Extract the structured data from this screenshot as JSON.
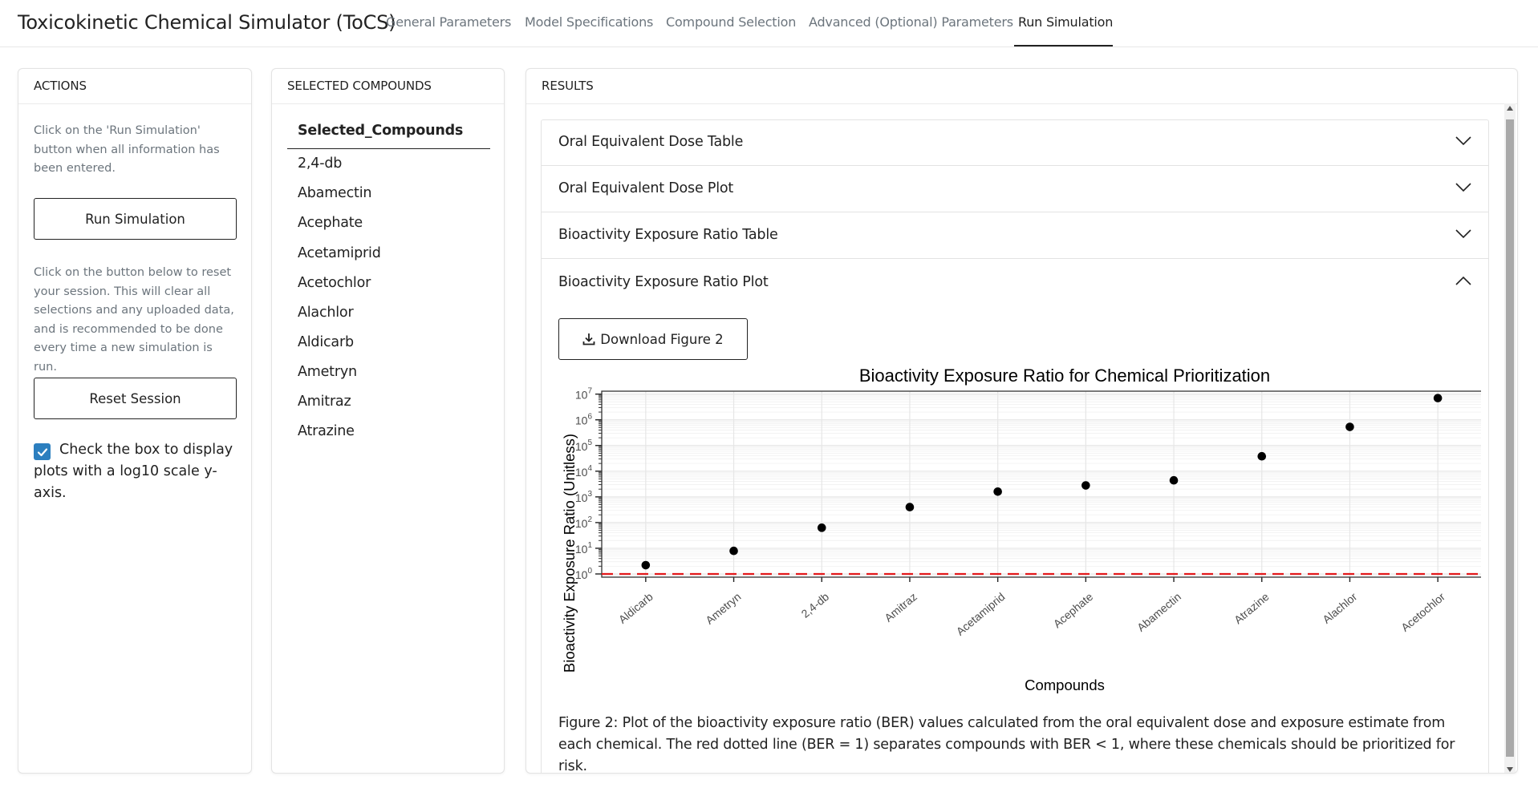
{
  "navbar": {
    "brand": "Toxicokinetic Chemical Simulator (ToCS)",
    "tabs": [
      {
        "label": "General Parameters"
      },
      {
        "label": "Model Specifications"
      },
      {
        "label": "Compound Selection"
      },
      {
        "label": "Advanced (Optional) Parameters"
      },
      {
        "label": "Run Simulation"
      }
    ]
  },
  "actions": {
    "header": "ACTIONS",
    "run_help": "Click on the 'Run Simulation' button when all information has been entered.",
    "run_button": "Run Simulation",
    "reset_help": "Click on the button below to reset your session. This will clear all selections and any uploaded data, and is recommended to be done every time a new simulation is run.",
    "reset_button": "Reset Session",
    "log_checkbox_label": "Check the box to display plots with a log10 scale y-axis.",
    "log_checked": true
  },
  "compounds": {
    "header": "SELECTED COMPOUNDS",
    "column_header": "Selected_Compounds",
    "items": [
      "2,4-db",
      "Abamectin",
      "Acephate",
      "Acetamiprid",
      "Acetochlor",
      "Alachlor",
      "Aldicarb",
      "Ametryn",
      "Amitraz",
      "Atrazine"
    ]
  },
  "results": {
    "header": "RESULTS",
    "accordion": [
      {
        "label": "Oral Equivalent Dose Table",
        "expanded": false
      },
      {
        "label": "Oral Equivalent Dose Plot",
        "expanded": false
      },
      {
        "label": "Bioactivity Exposure Ratio Table",
        "expanded": false
      },
      {
        "label": "Bioactivity Exposure Ratio Plot",
        "expanded": true
      }
    ],
    "download_button": "Download Figure 2",
    "caption": "Figure 2: Plot of the bioactivity exposure ratio (BER) values calculated from the oral equivalent dose and exposure estimate from each chemical. The red dotted line (BER = 1) separates compounds with BER < 1, where these chemicals should be prioritized for risk."
  },
  "chart_data": {
    "type": "scatter",
    "title": "Bioactivity Exposure Ratio for Chemical Prioritization",
    "xlabel": "Compounds",
    "ylabel": "Bioactivity Exposure Ratio (Unitless)",
    "y_scale": "log10",
    "ylim": [
      0.75,
      13000000
    ],
    "categories": [
      "Aldicarb",
      "Ametryn",
      "2,4-db",
      "Amitraz",
      "Acetamiprid",
      "Acephate",
      "Abamectin",
      "Atrazine",
      "Alachlor",
      "Acetochlor"
    ],
    "values": [
      2.2,
      7.9,
      63,
      400,
      1600,
      2800,
      4400,
      38000,
      530000,
      7000000
    ],
    "y_ticks": [
      "10^0",
      "10^1",
      "10^2",
      "10^3",
      "10^4",
      "10^5",
      "10^6",
      "10^7"
    ],
    "reference_line": {
      "y": 1,
      "color": "#e41a1c",
      "style": "dashed"
    },
    "point_color": "#000000",
    "grid": true
  }
}
